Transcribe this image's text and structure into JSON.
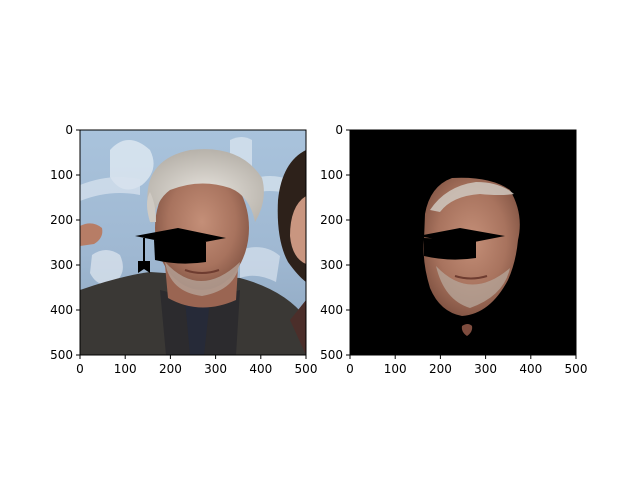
{
  "figure": {
    "background": "#ffffff"
  },
  "chart_data": [
    {
      "type": "image",
      "title": "",
      "xlabel": "",
      "ylabel": "",
      "xlim": [
        0,
        500
      ],
      "ylim": [
        500,
        0
      ],
      "y_inverted": true,
      "xticks": [
        0,
        100,
        200,
        300,
        400,
        500
      ],
      "yticks": [
        0,
        100,
        200,
        300,
        400,
        500
      ],
      "xtick_labels": [
        "0",
        "100",
        "200",
        "300",
        "400",
        "500"
      ],
      "ytick_labels": [
        "0",
        "100",
        "200",
        "300",
        "400",
        "500"
      ],
      "grid": false,
      "image_content": "photo-face-original"
    },
    {
      "type": "image",
      "title": "",
      "xlabel": "",
      "ylabel": "",
      "xlim": [
        0,
        500
      ],
      "ylim": [
        500,
        0
      ],
      "y_inverted": true,
      "xticks": [
        0,
        100,
        200,
        300,
        400,
        500
      ],
      "yticks": [
        0,
        100,
        200,
        300,
        400,
        500
      ],
      "xtick_labels": [
        "0",
        "100",
        "200",
        "300",
        "400",
        "500"
      ],
      "ytick_labels": [
        "0",
        "100",
        "200",
        "300",
        "400",
        "500"
      ],
      "grid": false,
      "image_content": "photo-face-segmented-mask",
      "mask_background": "#000000"
    }
  ]
}
